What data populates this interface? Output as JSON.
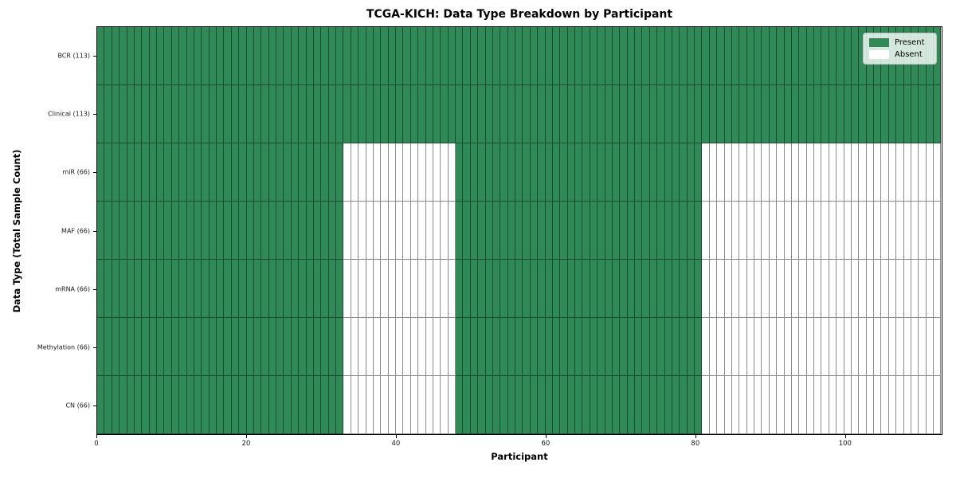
{
  "chart_data": {
    "type": "heatmap",
    "title": "TCGA-KICH: Data Type Breakdown by Participant",
    "xlabel": "Participant",
    "ylabel": "Data Type (Total Sample Count)",
    "x_ticks": [
      0,
      20,
      40,
      60,
      80,
      100
    ],
    "x_range": [
      0,
      113
    ],
    "n_participants": 113,
    "grid": false,
    "legend_position": "upper right",
    "rows": [
      {
        "label": "BCR (113)",
        "data_type": "BCR",
        "total_sample_count": 113,
        "present_ranges": [
          [
            0,
            113
          ]
        ]
      },
      {
        "label": "Clinical (113)",
        "data_type": "Clinical",
        "total_sample_count": 113,
        "present_ranges": [
          [
            0,
            113
          ]
        ]
      },
      {
        "label": "miR (66)",
        "data_type": "miR",
        "total_sample_count": 66,
        "present_ranges": [
          [
            0,
            33
          ],
          [
            48,
            81
          ]
        ]
      },
      {
        "label": "MAF (66)",
        "data_type": "MAF",
        "total_sample_count": 66,
        "present_ranges": [
          [
            0,
            33
          ],
          [
            48,
            81
          ]
        ]
      },
      {
        "label": "mRNA (66)",
        "data_type": "mRNA",
        "total_sample_count": 66,
        "present_ranges": [
          [
            0,
            33
          ],
          [
            48,
            81
          ]
        ]
      },
      {
        "label": "Methylation (66)",
        "data_type": "Methylation",
        "total_sample_count": 66,
        "present_ranges": [
          [
            0,
            33
          ],
          [
            48,
            81
          ]
        ]
      },
      {
        "label": "CN (66)",
        "data_type": "CN",
        "total_sample_count": 66,
        "present_ranges": [
          [
            0,
            33
          ],
          [
            48,
            81
          ]
        ]
      }
    ],
    "legend": [
      {
        "label": "Present",
        "color": "#2f8a58"
      },
      {
        "label": "Absent",
        "color": "#ffffff"
      }
    ],
    "colors": {
      "present": "#2f8a58",
      "absent": "#ffffff",
      "cell_edge": "rgba(0,0,0,0.45)",
      "spine": "#000000",
      "tick_text": "#1a1a1a"
    }
  }
}
